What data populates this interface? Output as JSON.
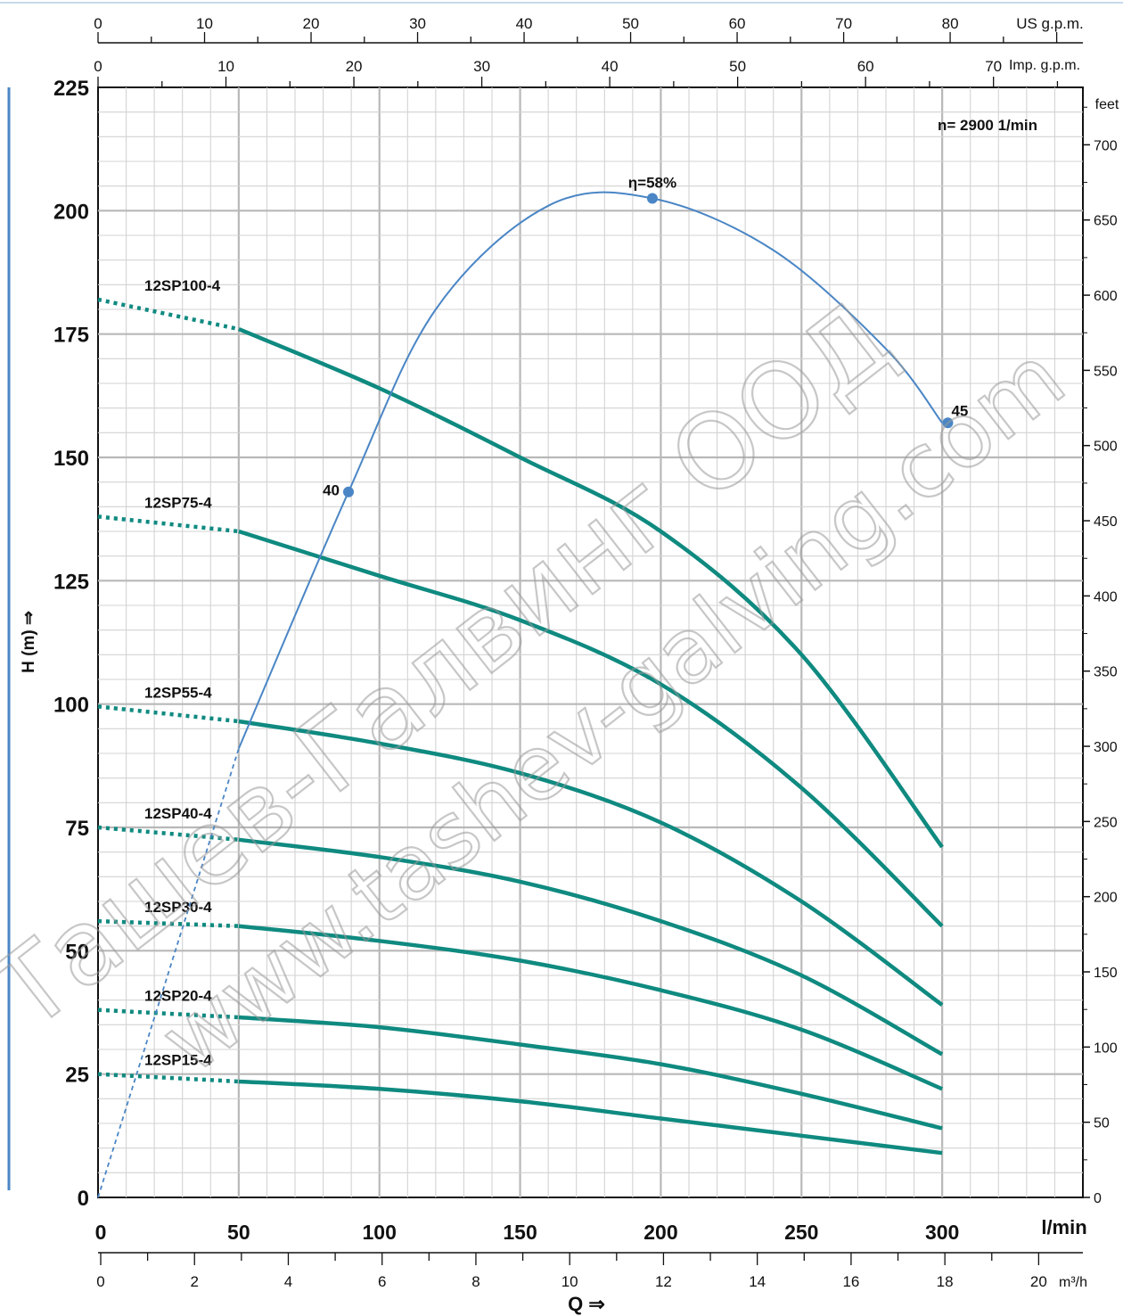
{
  "chart_data": {
    "type": "line",
    "title": "",
    "speed_label": "n= 2900  1/min",
    "xlabel": "Q ⇒",
    "ylabel": "H (m) ⇒",
    "x_unit_label": "l/min",
    "x_range": [
      0,
      350
    ],
    "y_range": [
      0,
      225
    ],
    "x_ticks": [
      0,
      50,
      100,
      150,
      200,
      250,
      300
    ],
    "y_ticks": [
      0,
      25,
      50,
      75,
      100,
      125,
      150,
      175,
      200,
      225
    ],
    "grid": true,
    "secondary_axes": {
      "us_gpm": {
        "label": "US g.p.m.",
        "ticks": [
          "0",
          "10",
          "20",
          "30",
          "40",
          "50",
          "60",
          "70",
          "80"
        ]
      },
      "imp_gpm": {
        "label": "Imp. g.p.m.",
        "ticks": [
          "0",
          "10",
          "20",
          "30",
          "40",
          "50",
          "60",
          "70"
        ]
      },
      "feet": {
        "label": "feet",
        "ticks": [
          "0",
          "50",
          "100",
          "150",
          "200",
          "250",
          "300",
          "350",
          "400",
          "450",
          "500",
          "550",
          "600",
          "650",
          "700"
        ]
      },
      "m3h": {
        "label": "m³/h",
        "ticks": [
          "0",
          "2",
          "4",
          "6",
          "8",
          "10",
          "12",
          "14",
          "16",
          "18",
          "20"
        ]
      }
    },
    "series": [
      {
        "name": "12SP100-4",
        "x": [
          0,
          50,
          100,
          150,
          200,
          250,
          300
        ],
        "y": [
          182,
          176,
          164,
          150,
          135,
          110,
          71
        ]
      },
      {
        "name": "12SP75-4",
        "x": [
          0,
          50,
          100,
          150,
          200,
          250,
          300
        ],
        "y": [
          138,
          135,
          126,
          117,
          104,
          83,
          55
        ]
      },
      {
        "name": "12SP55-4",
        "x": [
          0,
          50,
          100,
          150,
          200,
          250,
          300
        ],
        "y": [
          99.5,
          96.5,
          92,
          86,
          76,
          60,
          39
        ]
      },
      {
        "name": "12SP40-4",
        "x": [
          0,
          50,
          100,
          150,
          200,
          250,
          300
        ],
        "y": [
          75,
          72.5,
          69,
          64,
          56,
          45,
          29
        ]
      },
      {
        "name": "12SP30-4",
        "x": [
          0,
          50,
          100,
          150,
          200,
          250,
          300
        ],
        "y": [
          56,
          55,
          52,
          48,
          42,
          34,
          22
        ]
      },
      {
        "name": "12SP20-4",
        "x": [
          0,
          50,
          100,
          150,
          200,
          250,
          300
        ],
        "y": [
          38,
          36.5,
          34.5,
          31,
          27,
          21,
          14
        ]
      },
      {
        "name": "12SP15-4",
        "x": [
          0,
          50,
          100,
          150,
          200,
          250,
          300
        ],
        "y": [
          25,
          23.5,
          22,
          19.5,
          16,
          12.5,
          9
        ]
      }
    ],
    "efficiency_curve": {
      "label": "η=58%",
      "x": [
        0,
        50,
        89,
        120,
        160,
        197,
        240,
        280,
        300
      ],
      "y": [
        0,
        91,
        143,
        180,
        201,
        202.5,
        192,
        172,
        157
      ],
      "points": [
        {
          "label": "40",
          "x": 89,
          "y": 143
        },
        {
          "label": "η=58%",
          "x": 197,
          "y": 202.5
        },
        {
          "label": "45",
          "x": 302,
          "y": 157
        }
      ]
    }
  },
  "watermark": {
    "line1": "Ташев-Галвинг ООД",
    "line2": "www.tashev-galving.com"
  }
}
